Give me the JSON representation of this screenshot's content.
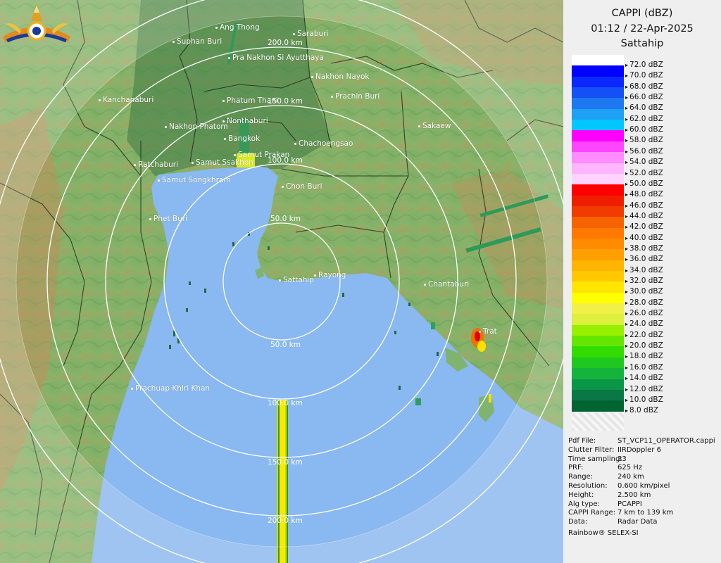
{
  "panel": {
    "title": "CAPPI (dBZ)",
    "datetime": "01:12 / 22-Apr-2025",
    "station": "Sattahip",
    "footer": "Rainbow® SELEX-SI"
  },
  "color_scale": [
    {
      "label": "72.0 dBZ",
      "color": "#ffffff"
    },
    {
      "label": "70.0 dBZ",
      "color": "#0000ff"
    },
    {
      "label": "68.0 dBZ",
      "color": "#0a28ff"
    },
    {
      "label": "66.0 dBZ",
      "color": "#1450f5"
    },
    {
      "label": "64.0 dBZ",
      "color": "#1e78f0"
    },
    {
      "label": "62.0 dBZ",
      "color": "#1ea0f5"
    },
    {
      "label": "60.0 dBZ",
      "color": "#00c8ff"
    },
    {
      "label": "58.0 dBZ",
      "color": "#ff00ff"
    },
    {
      "label": "56.0 dBZ",
      "color": "#ff46ff"
    },
    {
      "label": "54.0 dBZ",
      "color": "#ff8cff"
    },
    {
      "label": "52.0 dBZ",
      "color": "#ffb4ff"
    },
    {
      "label": "50.0 dBZ",
      "color": "#ffd2ff"
    },
    {
      "label": "48.0 dBZ",
      "color": "#ff0000"
    },
    {
      "label": "46.0 dBZ",
      "color": "#f01e00"
    },
    {
      "label": "44.0 dBZ",
      "color": "#f03c00"
    },
    {
      "label": "42.0 dBZ",
      "color": "#f56400"
    },
    {
      "label": "40.0 dBZ",
      "color": "#ff7800"
    },
    {
      "label": "38.0 dBZ",
      "color": "#ff8c00"
    },
    {
      "label": "36.0 dBZ",
      "color": "#ffa000"
    },
    {
      "label": "34.0 dBZ",
      "color": "#ffb400"
    },
    {
      "label": "32.0 dBZ",
      "color": "#ffc800"
    },
    {
      "label": "30.0 dBZ",
      "color": "#ffe600"
    },
    {
      "label": "28.0 dBZ",
      "color": "#ffff00"
    },
    {
      "label": "26.0 dBZ",
      "color": "#f0f046"
    },
    {
      "label": "24.0 dBZ",
      "color": "#dcf03c"
    },
    {
      "label": "22.0 dBZ",
      "color": "#96f000"
    },
    {
      "label": "20.0 dBZ",
      "color": "#64e600"
    },
    {
      "label": "18.0 dBZ",
      "color": "#32dc00"
    },
    {
      "label": "16.0 dBZ",
      "color": "#1ec81e"
    },
    {
      "label": "14.0 dBZ",
      "color": "#14b43c"
    },
    {
      "label": "12.0 dBZ",
      "color": "#0a9646"
    },
    {
      "label": "10.0 dBZ",
      "color": "#0a7846"
    },
    {
      "label": "8.0 dBZ",
      "color": "#006432"
    }
  ],
  "info": [
    {
      "key": "Pdf File:",
      "value": "ST_VCP11_OPERATOR.cappi"
    },
    {
      "key": "Clutter Filter:",
      "value": "IIRDoppler 6"
    },
    {
      "key": "Time sampling:",
      "value": "33"
    },
    {
      "key": "PRF:",
      "value": "625 Hz"
    },
    {
      "key": "Range:",
      "value": "240 km"
    },
    {
      "key": "Resolution:",
      "value": "0.600 km/pixel"
    },
    {
      "key": "Height:",
      "value": "2.500 km"
    },
    {
      "key": "Alg type:",
      "value": "PCAPPI"
    },
    {
      "key": "CAPPI Range:",
      "value": "7 km to 139 km"
    },
    {
      "key": "Data:",
      "value": "Radar Data"
    }
  ],
  "map": {
    "colors": {
      "sea": "#8ab8f0",
      "land": "#7fb36f",
      "rings": "#ffffff",
      "labels": "#ffffff"
    },
    "range_rings": [
      "50.0 km",
      "100.0 km",
      "150.0 km",
      "200.0 km"
    ],
    "places": [
      {
        "name": "Ang Thong"
      },
      {
        "name": "Saraburi"
      },
      {
        "name": "Suphan Buri"
      },
      {
        "name": "Pra Nakhon Si Ayutthaya"
      },
      {
        "name": "Nakhon Nayok"
      },
      {
        "name": "Kanchanaburi"
      },
      {
        "name": "Phatum Thani"
      },
      {
        "name": "Prachin Buri"
      },
      {
        "name": "Nakhon Phatom"
      },
      {
        "name": "Nonthaburi"
      },
      {
        "name": "Sakaew"
      },
      {
        "name": "Bangkok"
      },
      {
        "name": "Chachoengsao"
      },
      {
        "name": "Samut Prakan"
      },
      {
        "name": "Ratchaburi"
      },
      {
        "name": "Samut Ssakhon"
      },
      {
        "name": "Samut Songkhram"
      },
      {
        "name": "Chon Buri"
      },
      {
        "name": "Phet Buri"
      },
      {
        "name": "Sattahip"
      },
      {
        "name": "Rayong"
      },
      {
        "name": "Chantaburi"
      },
      {
        "name": "Trat"
      },
      {
        "name": "Prachuap Khiri Khan"
      }
    ]
  }
}
